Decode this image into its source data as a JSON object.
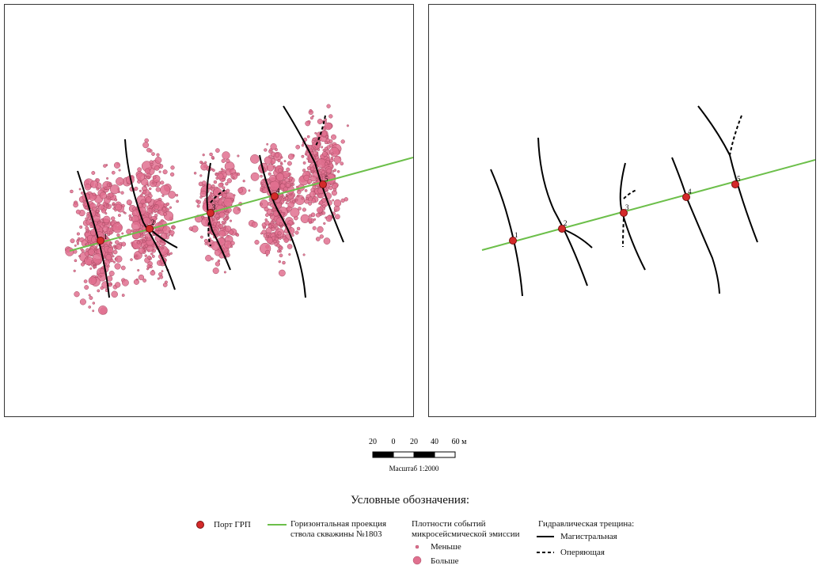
{
  "map": {
    "ports": [
      {
        "id": "1",
        "label": "1"
      },
      {
        "id": "2",
        "label": "2"
      },
      {
        "id": "3",
        "label": "3"
      },
      {
        "id": "4",
        "label": "4"
      },
      {
        "id": "5",
        "label": "5"
      }
    ],
    "colors": {
      "port": "#d42a2a",
      "well_trajectory": "#6cbf4a",
      "events": "#e0708f",
      "events_outline": "#a84a63",
      "fracture": "#000000"
    }
  },
  "scale": {
    "ticks": [
      "20",
      "0",
      "20",
      "40",
      "60 м"
    ],
    "caption": "Масштаб 1:2000"
  },
  "legend": {
    "title": "Условные обозначения:",
    "port_label": "Порт ГРП",
    "well_label_line1": "Горизонтальная проекция",
    "well_label_line2": "ствола скважины №1803",
    "density_title_line1": "Плотности событий",
    "density_title_line2": "микросейсмической эмиссии",
    "density_small": "Меньше",
    "density_large": "Больше",
    "fracture_title": "Гидравлическая трещина:",
    "fracture_main": "Магистральная",
    "fracture_secondary": "Оперяющая"
  }
}
